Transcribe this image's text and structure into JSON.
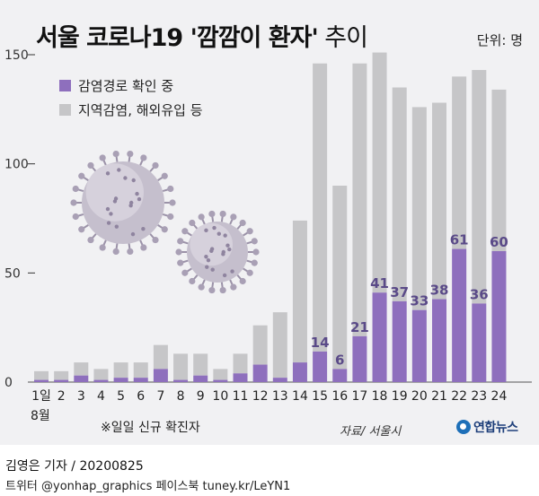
{
  "title": {
    "bold": "서울 코로나19 '깜깜이 환자'",
    "light": " 추이"
  },
  "unit": "단위: 명",
  "legend": {
    "trace": "감염경로 확인 중",
    "other": "지역감염, 해외유입 등"
  },
  "colors": {
    "trace": "#8e6fbd",
    "other": "#c6c6c8",
    "panel": "#f1f1f3",
    "label": "#5a4a88"
  },
  "footnote": "※일일 신규 확진자",
  "month_label": "8월",
  "source": "자료/ 서울시",
  "brand": "연합뉴스",
  "credit": "김영은 기자 / 20200825",
  "social": "트위터 @yonhap_graphics  페이스북 tuney.kr/LeYN1",
  "chart_data": {
    "type": "bar",
    "stacked": true,
    "categories": [
      "1일",
      "2",
      "3",
      "4",
      "5",
      "6",
      "7",
      "8",
      "9",
      "10",
      "11",
      "12",
      "13",
      "14",
      "15",
      "16",
      "17",
      "18",
      "19",
      "20",
      "21",
      "22",
      "23",
      "24"
    ],
    "series": [
      {
        "name": "감염경로 확인 중",
        "values": [
          1,
          1,
          3,
          1,
          2,
          2,
          6,
          1,
          3,
          1,
          4,
          8,
          2,
          9,
          14,
          6,
          21,
          41,
          37,
          33,
          38,
          61,
          36,
          60
        ]
      },
      {
        "name": "지역감염, 해외유입 등",
        "values": [
          4,
          4,
          6,
          5,
          7,
          7,
          11,
          12,
          10,
          5,
          9,
          18,
          30,
          65,
          132,
          84,
          125,
          110,
          98,
          93,
          90,
          79,
          107,
          74
        ]
      }
    ],
    "data_labels": {
      "15": "14",
      "16": "6",
      "17": "21",
      "18": "41",
      "19": "37",
      "20": "33",
      "21": "38",
      "22": "61",
      "23": "36",
      "24": "60"
    },
    "yticks": [
      0,
      50,
      100,
      150
    ],
    "ylim": [
      0,
      150
    ],
    "grid": false,
    "legend": "top-left"
  }
}
